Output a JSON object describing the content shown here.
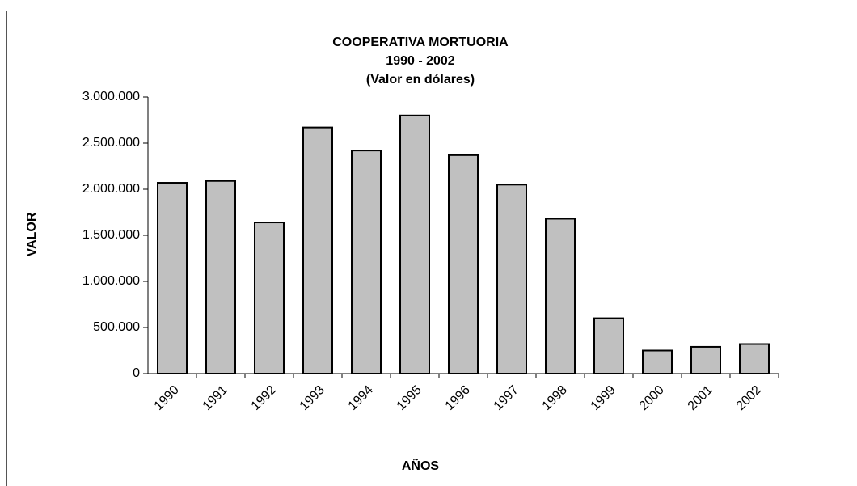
{
  "chart_data": {
    "type": "bar",
    "title": [
      "COOPERATIVA MORTUORIA",
      "1990 - 2002",
      "(Valor en dólares)"
    ],
    "x_label": "AÑOS",
    "y_label": "VALOR",
    "categories": [
      "1990",
      "1991",
      "1992",
      "1993",
      "1994",
      "1995",
      "1996",
      "1997",
      "1998",
      "1999",
      "2000",
      "2001",
      "2002"
    ],
    "values": [
      2070000,
      2090000,
      1640000,
      2670000,
      2420000,
      2800000,
      2370000,
      2050000,
      1680000,
      600000,
      250000,
      290000,
      320000
    ],
    "color": "#c0c0c0",
    "ylim": [
      0,
      3000000
    ],
    "yticks": [
      0,
      {
        "value": 500000,
        "label": "500.000"
      },
      {
        "value": 1000000,
        "label": "1.000.000"
      },
      {
        "value": 1500000,
        "label": "1.500.000"
      },
      {
        "value": 2000000,
        "label": "2.000.000"
      },
      {
        "value": 2500000,
        "label": "2.500.000"
      },
      {
        "value": 3000000,
        "label": "3.000.000"
      }
    ],
    "grid": false
  }
}
